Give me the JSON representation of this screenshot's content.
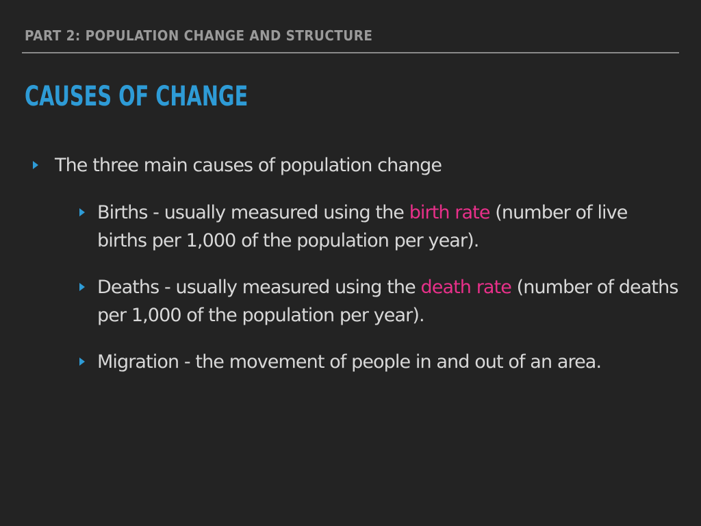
{
  "header": {
    "section": "PART 2: POPULATION CHANGE AND STRUCTURE",
    "title": "CAUSES OF CHANGE"
  },
  "bullets": {
    "main": "The three main causes of population change",
    "births": {
      "before": "Births - usually measured using the ",
      "term": "birth rate",
      "after": " (number of live births per 1,000 of the population per year)."
    },
    "deaths": {
      "before": "Deaths - usually measured using the ",
      "term": "death rate",
      "after": " (number of deaths per 1,000 of the population per year)."
    },
    "migration": "Migration - the movement of people in and out of an area."
  },
  "colors": {
    "background": "#232323",
    "title": "#2e9bd6",
    "highlight": "#e8308a",
    "body_text": "#d8d8d8",
    "header_text": "#9a9a9a"
  }
}
